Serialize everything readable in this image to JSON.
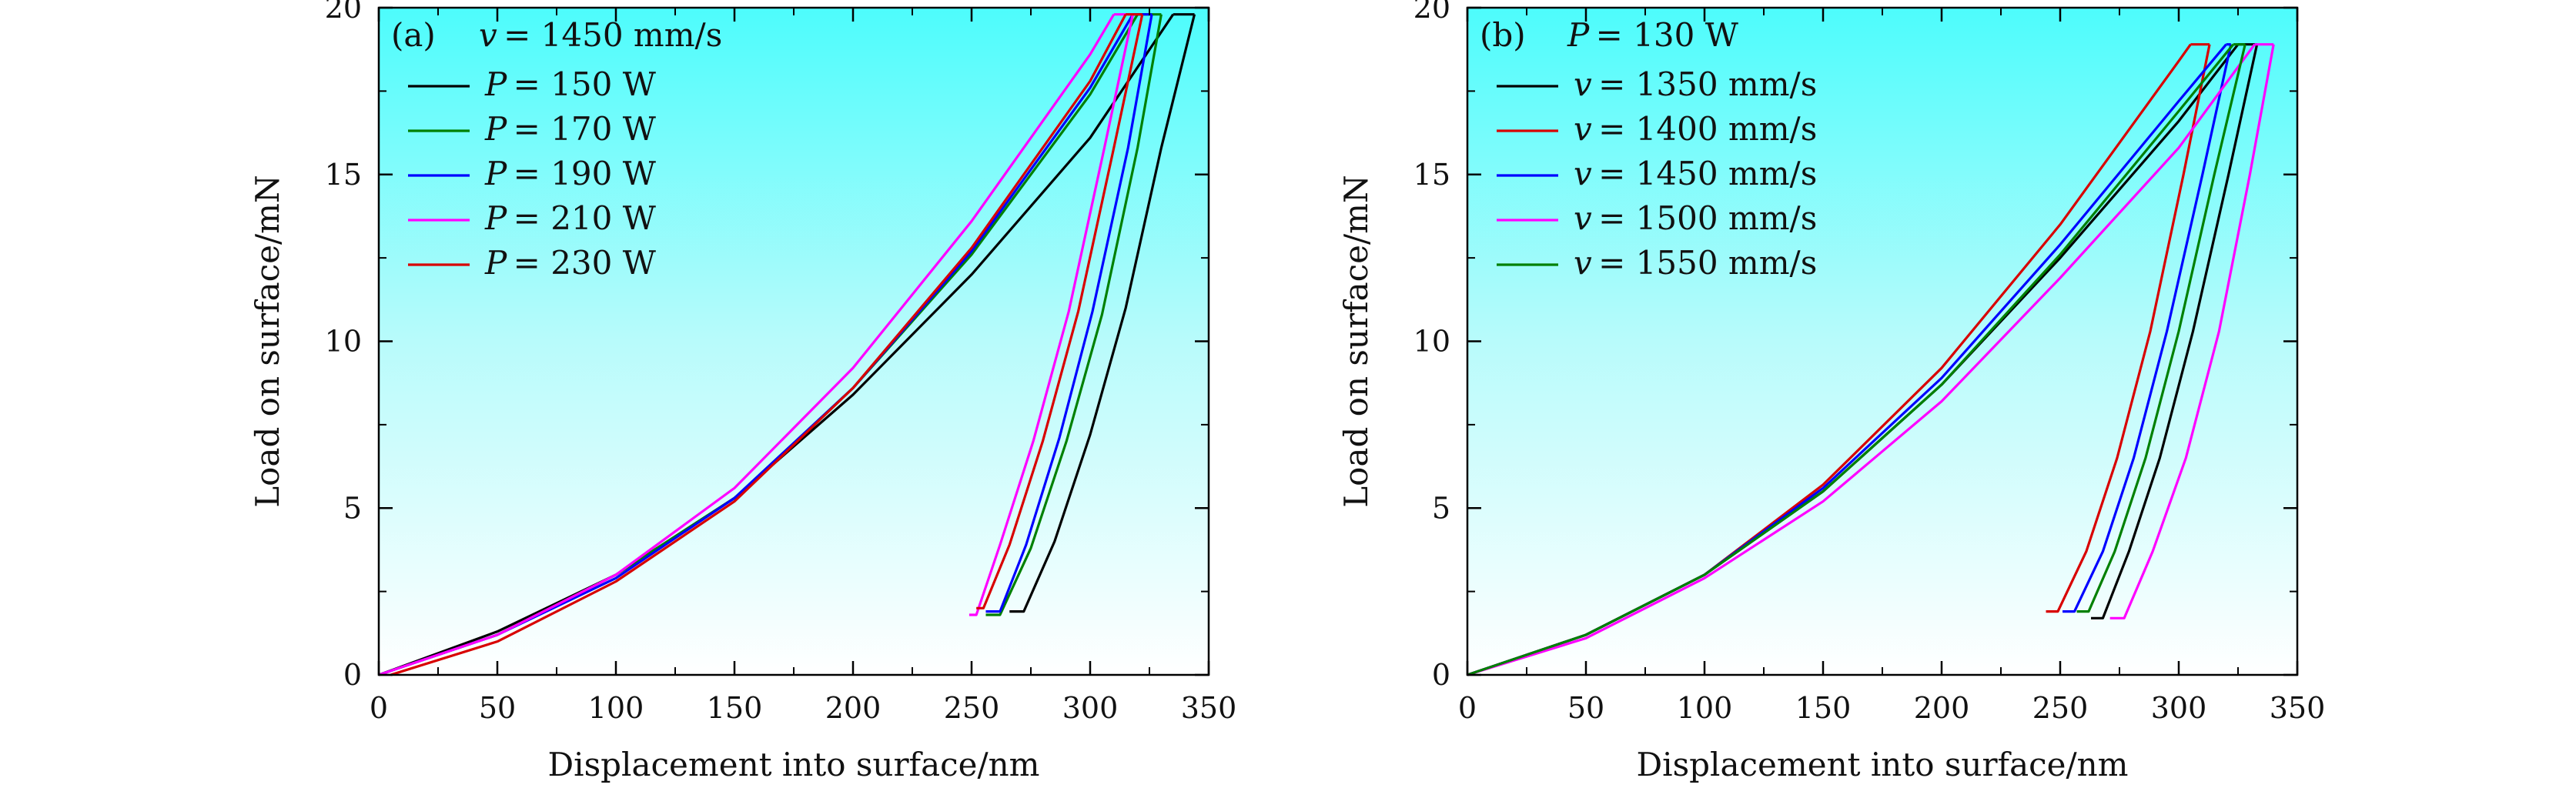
{
  "chart_data": [
    {
      "type": "line",
      "panel_label": "(a)",
      "annotation": "v = 1450 mm/s",
      "xlabel": "Displacement into surface/nm",
      "ylabel": "Load on surface/mN",
      "xlim": [
        0,
        350
      ],
      "ylim": [
        0,
        20
      ],
      "xticks": [
        0,
        50,
        100,
        150,
        200,
        250,
        300,
        350
      ],
      "yticks": [
        0,
        5,
        10,
        15,
        20
      ],
      "grid": false,
      "legend_position": "top-left",
      "background": "cyan-to-white vertical gradient",
      "series": [
        {
          "name": "P = 150 W",
          "color": "#000000",
          "loading": {
            "x": [
              0,
              50,
              100,
              150,
              200,
              250,
              300,
              335
            ],
            "y": [
              0,
              1.3,
              3.0,
              5.3,
              8.4,
              12.0,
              16.1,
              19.8
            ]
          },
          "unloading": {
            "x": [
              344,
              330,
              315,
              300,
              285,
              272,
              266
            ],
            "y": [
              19.8,
              15.8,
              11.0,
              7.2,
              4.0,
              1.9,
              1.9
            ]
          }
        },
        {
          "name": "P = 170 W",
          "color": "#008000",
          "loading": {
            "x": [
              0,
              50,
              100,
              150,
              200,
              250,
              300,
              320
            ],
            "y": [
              0,
              1.2,
              3.0,
              5.3,
              8.6,
              12.6,
              17.4,
              19.8
            ]
          },
          "unloading": {
            "x": [
              330,
              320,
              305,
              290,
              275,
              262,
              256
            ],
            "y": [
              19.8,
              15.8,
              10.8,
              7.0,
              3.8,
              1.8,
              1.8
            ]
          }
        },
        {
          "name": "P = 190 W",
          "color": "#0000ff",
          "loading": {
            "x": [
              0,
              50,
              100,
              150,
              200,
              250,
              300,
              318
            ],
            "y": [
              0,
              1.2,
              2.9,
              5.3,
              8.6,
              12.7,
              17.6,
              19.8
            ]
          },
          "unloading": {
            "x": [
              326,
              316,
              301,
              287,
              273,
              262,
              256
            ],
            "y": [
              19.8,
              15.8,
              10.9,
              7.1,
              3.9,
              1.9,
              1.9
            ]
          }
        },
        {
          "name": "P = 210 W",
          "color": "#ff00ff",
          "loading": {
            "x": [
              0,
              50,
              100,
              150,
              200,
              250,
              300,
              310
            ],
            "y": [
              0,
              1.2,
              3.0,
              5.6,
              9.2,
              13.6,
              18.6,
              19.8
            ]
          },
          "unloading": {
            "x": [
              318,
              306,
              291,
              276,
              262,
              252,
              249
            ],
            "y": [
              19.8,
              15.8,
              10.9,
              7.0,
              3.9,
              1.8,
              1.8
            ]
          }
        },
        {
          "name": "P = 230 W",
          "color": "#d80000",
          "loading": {
            "x": [
              5,
              50,
              100,
              150,
              200,
              250,
              300,
              315
            ],
            "y": [
              0,
              1.0,
              2.8,
              5.2,
              8.6,
              12.8,
              17.8,
              19.8
            ]
          },
          "unloading": {
            "x": [
              322,
              310,
              295,
              280,
              266,
              255,
              252
            ],
            "y": [
              19.8,
              15.8,
              10.9,
              7.0,
              3.9,
              2.0,
              2.0
            ]
          }
        }
      ]
    },
    {
      "type": "line",
      "panel_label": "(b)",
      "annotation": "P = 130 W",
      "xlabel": "Displacement into surface/nm",
      "ylabel": "Load on surface/mN",
      "xlim": [
        0,
        350
      ],
      "ylim": [
        0,
        20
      ],
      "xticks": [
        0,
        50,
        100,
        150,
        200,
        250,
        300,
        350
      ],
      "yticks": [
        0,
        5,
        10,
        15,
        20
      ],
      "grid": false,
      "legend_position": "top-left",
      "background": "cyan-to-white vertical gradient",
      "series": [
        {
          "name": "v = 1350 mm/s",
          "color": "#000000",
          "loading": {
            "x": [
              0,
              50,
              100,
              150,
              200,
              250,
              300,
              325
            ],
            "y": [
              0,
              1.2,
              3.0,
              5.5,
              8.7,
              12.5,
              16.6,
              18.9
            ]
          },
          "unloading": {
            "x": [
              333,
              321,
              306,
              292,
              279,
              268,
              263
            ],
            "y": [
              18.9,
              15.0,
              10.3,
              6.5,
              3.7,
              1.7,
              1.7
            ]
          }
        },
        {
          "name": "v = 1400 mm/s",
          "color": "#d80000",
          "loading": {
            "x": [
              0,
              50,
              100,
              150,
              200,
              250,
              300,
              305
            ],
            "y": [
              0,
              1.2,
              3.0,
              5.7,
              9.2,
              13.5,
              18.4,
              18.9
            ]
          },
          "unloading": {
            "x": [
              313,
              302,
              288,
              274,
              261,
              249,
              244
            ],
            "y": [
              18.9,
              15.0,
              10.3,
              6.5,
              3.7,
              1.9,
              1.9
            ]
          }
        },
        {
          "name": "v = 1450 mm/s",
          "color": "#0000ff",
          "loading": {
            "x": [
              0,
              50,
              100,
              150,
              200,
              250,
              300,
              320
            ],
            "y": [
              0,
              1.2,
              3.0,
              5.6,
              8.9,
              12.9,
              17.2,
              18.9
            ]
          },
          "unloading": {
            "x": [
              322,
              310,
              295,
              281,
              268,
              256,
              251
            ],
            "y": [
              18.9,
              15.0,
              10.3,
              6.5,
              3.7,
              1.9,
              1.9
            ]
          }
        },
        {
          "name": "v = 1500 mm/s",
          "color": "#ff00ff",
          "loading": {
            "x": [
              0,
              50,
              100,
              150,
              200,
              250,
              300,
              332
            ],
            "y": [
              0,
              1.1,
              2.9,
              5.2,
              8.2,
              11.9,
              15.8,
              18.9
            ]
          },
          "unloading": {
            "x": [
              340,
              330,
              317,
              303,
              289,
              277,
              271
            ],
            "y": [
              18.9,
              15.0,
              10.3,
              6.5,
              3.7,
              1.7,
              1.7
            ]
          }
        },
        {
          "name": "v = 1550 mm/s",
          "color": "#008000",
          "loading": {
            "x": [
              0,
              50,
              100,
              150,
              200,
              250,
              300,
              323
            ],
            "y": [
              0,
              1.2,
              3.0,
              5.5,
              8.7,
              12.6,
              16.9,
              18.9
            ]
          },
          "unloading": {
            "x": [
              328,
              315,
              300,
              286,
              273,
              262,
              257
            ],
            "y": [
              18.9,
              15.0,
              10.3,
              6.5,
              3.7,
              1.9,
              1.9
            ]
          }
        }
      ]
    }
  ]
}
